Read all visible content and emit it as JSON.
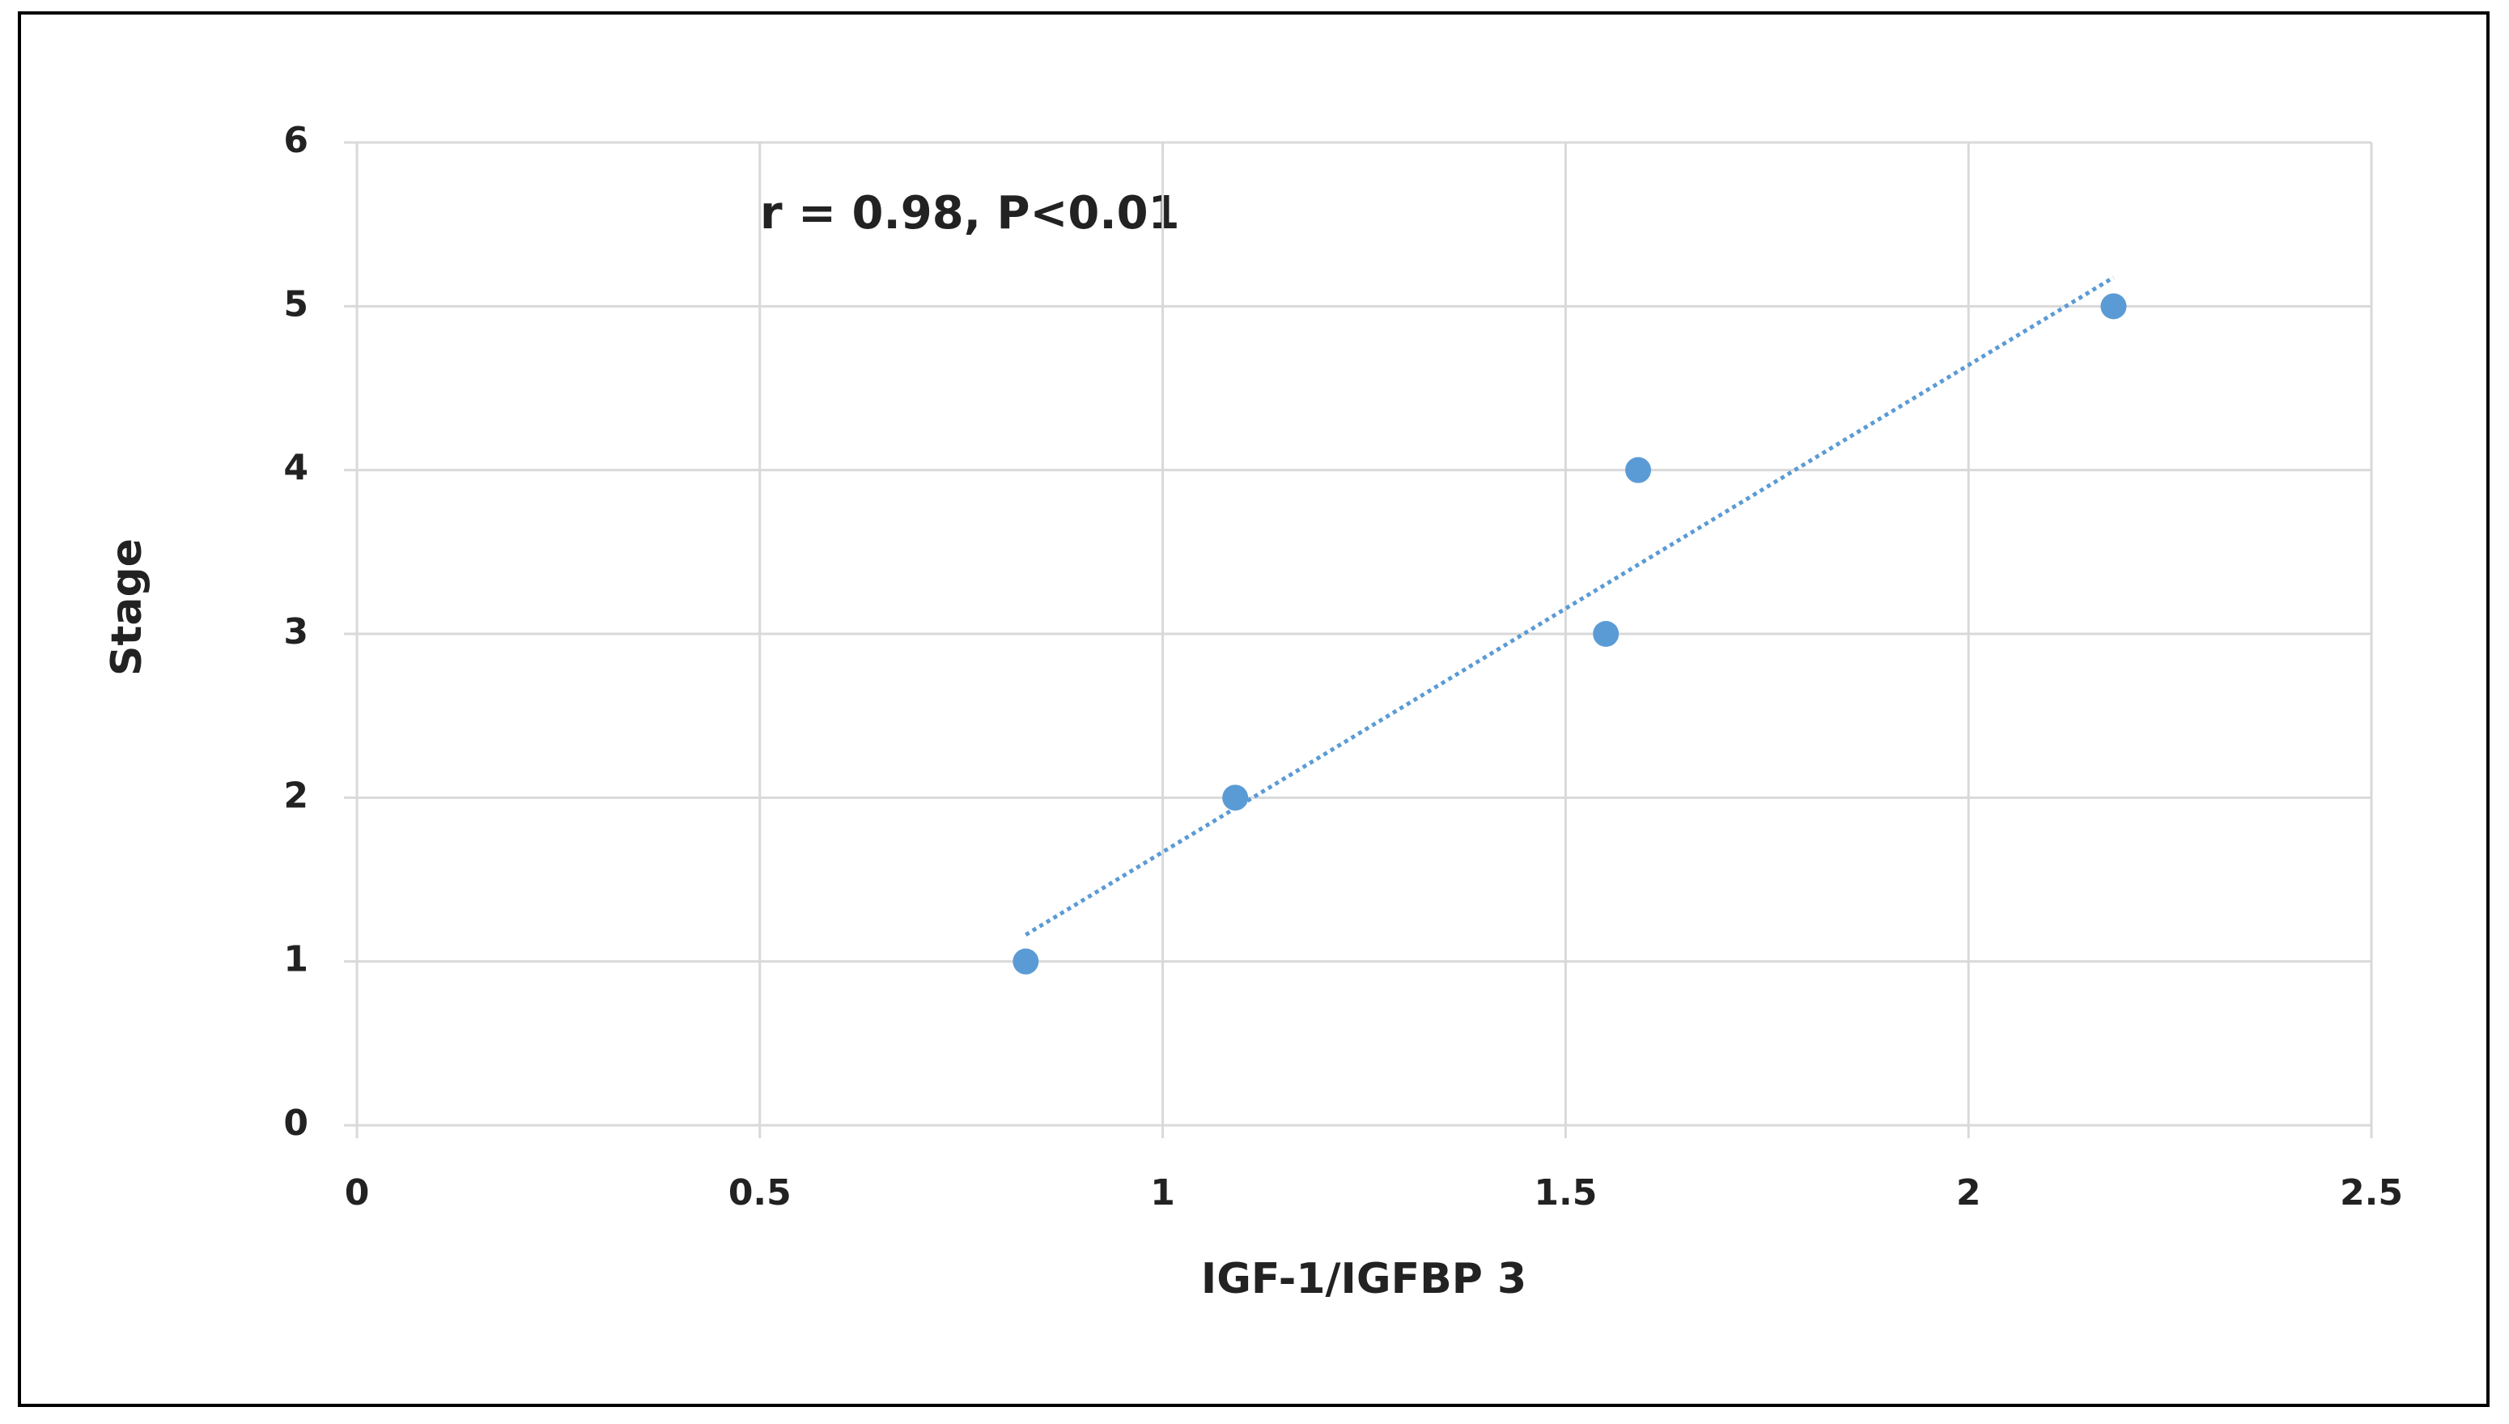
{
  "chart_data": {
    "type": "scatter",
    "annotation": "r = 0.98, P<0.01",
    "x_label": "IGF-1/IGFBP 3",
    "y_label": "Stage",
    "series": [
      {
        "color": "#5b9bd5",
        "x": [
          0.83,
          1.09,
          1.55,
          1.59,
          2.18
        ],
        "values": [
          1,
          2,
          3,
          4,
          5
        ]
      }
    ],
    "trendline": "linear",
    "xlim": [
      0,
      2.5
    ],
    "xticks": [
      0,
      0.5,
      1,
      1.5,
      2,
      2.5
    ],
    "ylim": [
      0,
      6
    ],
    "yticks": [
      0,
      1,
      2,
      3,
      4,
      5,
      6
    ],
    "grid": true
  }
}
